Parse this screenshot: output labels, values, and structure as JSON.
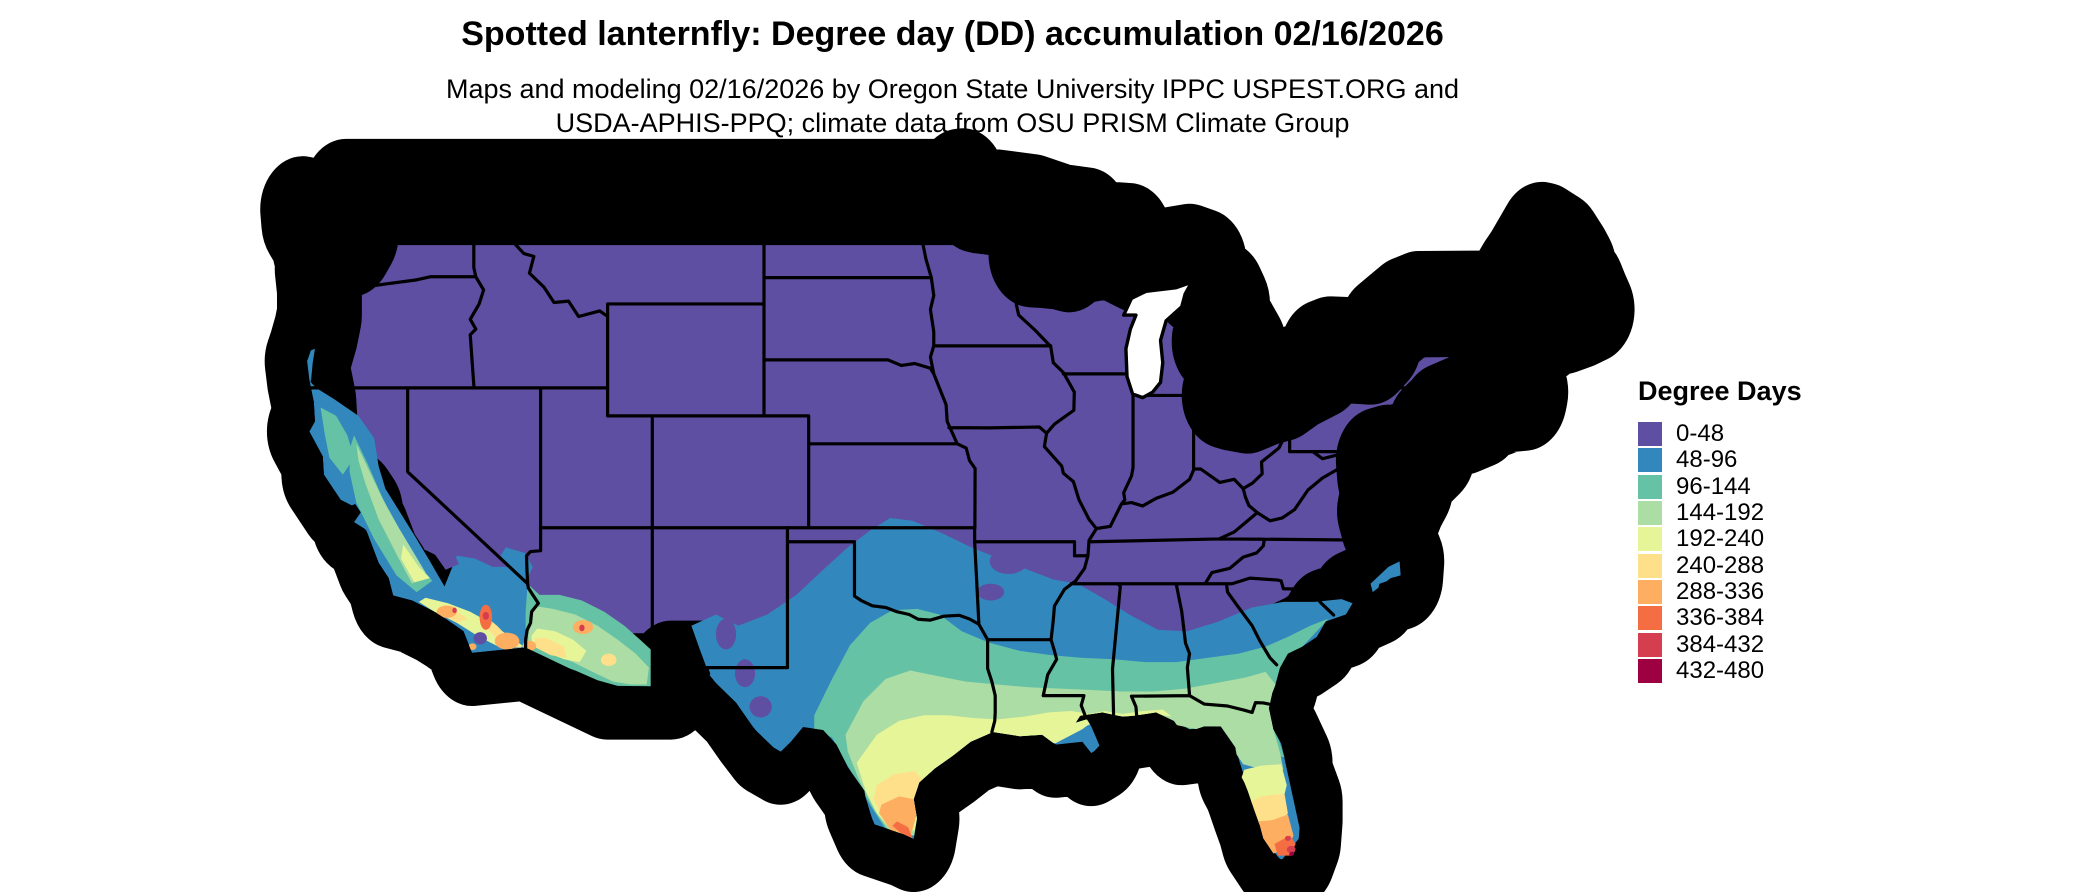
{
  "header": {
    "title": "Spotted lanternfly: Degree day (DD) accumulation 02/16/2026",
    "subtitle_line1": "Maps and modeling 02/16/2026 by Oregon State University IPPC USPEST.ORG and",
    "subtitle_line2": "USDA-APHIS-PPQ; climate data from OSU PRISM Climate Group"
  },
  "legend": {
    "title": "Degree Days",
    "items": [
      {
        "label": "0-48",
        "color": "#5e4fa2"
      },
      {
        "label": "48-96",
        "color": "#3288bd"
      },
      {
        "label": "96-144",
        "color": "#66c2a5"
      },
      {
        "label": "144-192",
        "color": "#abdda4"
      },
      {
        "label": "192-240",
        "color": "#e6f598"
      },
      {
        "label": "240-288",
        "color": "#fee08b"
      },
      {
        "label": "288-336",
        "color": "#fdae61"
      },
      {
        "label": "336-384",
        "color": "#f46d43"
      },
      {
        "label": "384-432",
        "color": "#d53e4f"
      },
      {
        "label": "432-480",
        "color": "#9e0142"
      }
    ]
  },
  "map": {
    "region": "Contiguous United States",
    "unit": "degree days",
    "date_shown": "02/16/2026",
    "border_color": "#000000",
    "water_color": "#ffffff"
  }
}
